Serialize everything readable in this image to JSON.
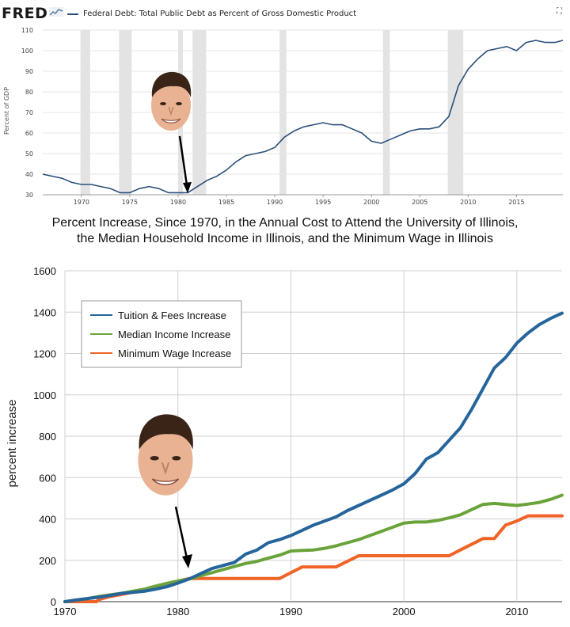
{
  "top_chart": {
    "logo_text": "FRED",
    "series_title": "Federal Debt: Total Public Debt as Percent of Gross Domestic Product",
    "ylabel": "Percent of GDP",
    "line_color": "#2a4f7a",
    "recession_color": "#e3e3e3",
    "expand_icon": "expand-icon"
  },
  "bottom_chart": {
    "title_line1": "Percent Increase, Since 1970, in the Annual Cost to Attend the University of Illinois,",
    "title_line2": "the Median Household Income in Illinois, and the Minimum Wage in Illinois",
    "ylabel": "percent increase"
  },
  "chart_data": [
    {
      "type": "line",
      "title": "Federal Debt: Total Public Debt as Percent of Gross Domestic Product",
      "ylabel": "Percent of GDP",
      "xlim": [
        1966,
        2019.8
      ],
      "ylim": [
        30,
        110
      ],
      "y_ticks": [
        30,
        40,
        50,
        60,
        70,
        80,
        90,
        100,
        110
      ],
      "x_ticks": [
        1970,
        1975,
        1980,
        1985,
        1990,
        1995,
        2000,
        2005,
        2010,
        2015
      ],
      "grid": true,
      "recessions": [
        [
          1969.9,
          1970.9
        ],
        [
          1973.9,
          1975.2
        ],
        [
          1980.0,
          1980.5
        ],
        [
          1981.5,
          1982.9
        ],
        [
          1990.5,
          1991.2
        ],
        [
          2001.2,
          2001.9
        ],
        [
          2007.9,
          2009.5
        ]
      ],
      "series": [
        {
          "color": "#2a4f7a",
          "x": [
            1966,
            1967,
            1968,
            1969,
            1970,
            1971,
            1972,
            1973,
            1974,
            1975,
            1976,
            1977,
            1978,
            1979,
            1980,
            1981,
            1982,
            1983,
            1984,
            1985,
            1986,
            1987,
            1988,
            1989,
            1990,
            1991,
            1992,
            1993,
            1994,
            1995,
            1996,
            1997,
            1998,
            1999,
            2000,
            2001,
            2002,
            2003,
            2004,
            2005,
            2006,
            2007,
            2008,
            2009,
            2010,
            2011,
            2012,
            2013,
            2014,
            2015,
            2016,
            2017,
            2018,
            2019,
            2019.8
          ],
          "values": [
            40,
            39,
            38,
            36,
            35,
            35,
            34,
            33,
            31,
            31,
            33,
            34,
            33,
            31,
            31,
            31,
            34,
            37,
            39,
            42,
            46,
            49,
            50,
            51,
            53,
            58,
            61,
            63,
            64,
            65,
            64,
            64,
            62,
            60,
            56,
            55,
            57,
            59,
            61,
            62,
            62,
            63,
            68,
            83,
            91,
            96,
            100,
            101,
            102,
            100,
            104,
            105,
            104,
            104,
            105
          ]
        }
      ]
    },
    {
      "type": "line",
      "title": "Percent Increase, Since 1970, in the Annual Cost to Attend the University of Illinois, the Median Household Income in Illinois, and the Minimum Wage in Illinois",
      "ylabel": "percent increase",
      "xlim": [
        1970,
        2014
      ],
      "ylim": [
        0,
        1600
      ],
      "y_ticks": [
        0,
        200,
        400,
        600,
        800,
        1000,
        1200,
        1400,
        1600
      ],
      "x_ticks": [
        1970,
        1980,
        1990,
        2000,
        2010
      ],
      "grid": true,
      "legend_position": "top-left",
      "series": [
        {
          "name": "Tuition & Fees Increase",
          "color": "#25659b",
          "x": [
            1970,
            1971,
            1972,
            1973,
            1974,
            1975,
            1976,
            1977,
            1978,
            1979,
            1980,
            1981,
            1982,
            1983,
            1984,
            1985,
            1986,
            1987,
            1988,
            1989,
            1990,
            1991,
            1992,
            1993,
            1994,
            1995,
            1996,
            1997,
            1998,
            1999,
            2000,
            2001,
            2002,
            2003,
            2004,
            2005,
            2006,
            2007,
            2008,
            2009,
            2010,
            2011,
            2012,
            2013,
            2014
          ],
          "values": [
            0,
            8,
            15,
            22,
            30,
            40,
            45,
            50,
            60,
            72,
            90,
            110,
            135,
            160,
            175,
            190,
            230,
            250,
            285,
            300,
            320,
            345,
            370,
            390,
            410,
            440,
            465,
            490,
            515,
            540,
            570,
            620,
            690,
            720,
            780,
            840,
            930,
            1030,
            1130,
            1180,
            1250,
            1300,
            1340,
            1370,
            1395
          ]
        },
        {
          "name": "Median Income Increase",
          "color": "#6aa33a",
          "x": [
            1970,
            1971,
            1972,
            1973,
            1974,
            1975,
            1976,
            1977,
            1978,
            1979,
            1980,
            1981,
            1982,
            1983,
            1984,
            1985,
            1986,
            1987,
            1988,
            1989,
            1990,
            1991,
            1992,
            1993,
            1994,
            1995,
            1996,
            1997,
            1998,
            1999,
            2000,
            2001,
            2002,
            2003,
            2004,
            2005,
            2006,
            2007,
            2008,
            2009,
            2010,
            2011,
            2012,
            2013,
            2014
          ],
          "values": [
            0,
            8,
            15,
            25,
            33,
            40,
            50,
            60,
            75,
            88,
            100,
            110,
            125,
            140,
            155,
            170,
            185,
            195,
            210,
            225,
            245,
            248,
            250,
            258,
            270,
            285,
            300,
            320,
            340,
            360,
            380,
            385,
            385,
            393,
            405,
            420,
            445,
            470,
            475,
            470,
            465,
            472,
            480,
            495,
            515
          ]
        },
        {
          "name": "Minimum Wage Increase",
          "color": "#ef6327",
          "x": [
            1970,
            1972.8,
            1973,
            1974,
            1975,
            1976,
            1977,
            1978,
            1979,
            1980,
            1981,
            1982,
            1988,
            1989,
            1990,
            1991,
            1994,
            1995,
            1996,
            2004,
            2005,
            2007,
            2008,
            2009,
            2010,
            2011,
            2014
          ],
          "values": [
            0,
            0,
            10,
            25,
            35,
            45,
            55,
            70,
            85,
            100,
            112,
            112,
            112,
            112,
            140,
            168,
            168,
            195,
            222,
            222,
            250,
            305,
            305,
            370,
            390,
            415,
            415
          ]
        }
      ]
    }
  ]
}
